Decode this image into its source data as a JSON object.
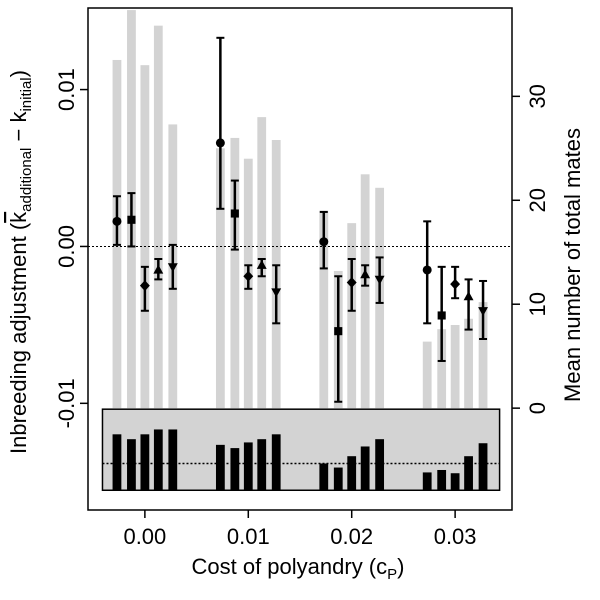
{
  "chart_data": {
    "type": "bar",
    "xlabel": "Cost of polyandry (c",
    "xlabel_sub": "P",
    "xlabel_close": ")",
    "ylabel_left_prefix": "Inbreeding adjustment (",
    "ylabel_left_k1": "k",
    "ylabel_left_sub1": "additional",
    "ylabel_left_minus": " − k",
    "ylabel_left_sub2": "initial",
    "ylabel_left_close": ")",
    "ylabel_right": "Mean number of total mates",
    "x_ticks": [
      {
        "value": 0.0,
        "label": "0.00"
      },
      {
        "value": 0.01,
        "label": "0.01"
      },
      {
        "value": 0.02,
        "label": "0.02"
      },
      {
        "value": 0.03,
        "label": "0.03"
      }
    ],
    "y_left_ticks": [
      {
        "value": -0.01,
        "label": "-0.01"
      },
      {
        "value": 0.0,
        "label": "0.00"
      },
      {
        "value": 0.01,
        "label": "0.01"
      }
    ],
    "y_right_ticks": [
      {
        "value": 0,
        "label": "0"
      },
      {
        "value": 10,
        "label": "10"
      },
      {
        "value": 20,
        "label": "20"
      },
      {
        "value": 30,
        "label": "30"
      }
    ],
    "x_range": [
      -0.0055,
      0.0355
    ],
    "y_left_range": [
      -0.0168,
      0.0152
    ],
    "y_right_range": [
      -9.8,
      38.5
    ],
    "reference_line_y": 0.0,
    "x_offsets": [
      -0.0027,
      -0.0013,
      0.0,
      0.0013,
      0.0027
    ],
    "groups": [
      {
        "x": 0.0,
        "mates": [
          33.5,
          38.3,
          33.0,
          36.8,
          27.3
        ],
        "effects": [
          {
            "marker": "circle",
            "mean": 0.0016,
            "lo": 0.0001,
            "hi": 0.0032
          },
          {
            "marker": "square",
            "mean": 0.0017,
            "lo": 0.0,
            "hi": 0.0034
          },
          {
            "marker": "diamond",
            "mean": -0.0025,
            "lo": -0.0041,
            "hi": -0.0013
          },
          {
            "marker": "triangle-up",
            "mean": -0.0015,
            "lo": -0.0021,
            "hi": -0.0008
          },
          {
            "marker": "triangle-down",
            "mean": -0.0013,
            "lo": -0.0027,
            "hi": 0.0001
          }
        ],
        "inset": [
          0.69,
          0.63,
          0.69,
          0.75,
          0.75
        ]
      },
      {
        "x": 0.01,
        "mates": [
          25.0,
          26.0,
          24.0,
          28.0,
          25.8
        ],
        "effects": [
          {
            "marker": "circle",
            "mean": 0.0066,
            "lo": 0.0024,
            "hi": 0.0133
          },
          {
            "marker": "square",
            "mean": 0.0021,
            "lo": -0.0002,
            "hi": 0.0042
          },
          {
            "marker": "diamond",
            "mean": -0.0019,
            "lo": -0.0027,
            "hi": -0.0012
          },
          {
            "marker": "triangle-up",
            "mean": -0.0012,
            "lo": -0.0019,
            "hi": -0.0008
          },
          {
            "marker": "triangle-down",
            "mean": -0.0029,
            "lo": -0.0049,
            "hi": -0.0012
          }
        ],
        "inset": [
          0.56,
          0.52,
          0.59,
          0.63,
          0.69
        ]
      },
      {
        "x": 0.02,
        "mates": [
          19.0,
          13.2,
          17.8,
          22.5,
          21.2
        ],
        "effects": [
          {
            "marker": "circle",
            "mean": 0.0003,
            "lo": -0.0014,
            "hi": 0.0022
          },
          {
            "marker": "square",
            "mean": -0.0054,
            "lo": -0.0099,
            "hi": -0.0019
          },
          {
            "marker": "diamond",
            "mean": -0.0023,
            "lo": -0.0041,
            "hi": -0.0008
          },
          {
            "marker": "triangle-up",
            "mean": -0.0018,
            "lo": -0.0025,
            "hi": -0.0012
          },
          {
            "marker": "triangle-down",
            "mean": -0.0021,
            "lo": -0.0036,
            "hi": -0.0007
          }
        ],
        "inset": [
          0.33,
          0.28,
          0.42,
          0.54,
          0.63
        ]
      },
      {
        "x": 0.03,
        "mates": [
          6.4,
          7.6,
          8.0,
          8.6,
          10.2
        ],
        "effects": [
          {
            "marker": "circle",
            "mean": -0.0015,
            "lo": -0.0049,
            "hi": 0.0016
          },
          {
            "marker": "square",
            "mean": -0.0044,
            "lo": -0.0073,
            "hi": -0.0013
          },
          {
            "marker": "diamond",
            "mean": -0.0024,
            "lo": -0.0033,
            "hi": -0.0013
          },
          {
            "marker": "triangle-up",
            "mean": -0.0032,
            "lo": -0.0053,
            "hi": -0.0021
          },
          {
            "marker": "triangle-down",
            "mean": -0.0041,
            "lo": -0.0059,
            "hi": -0.0022
          }
        ],
        "inset": [
          0.22,
          0.25,
          0.21,
          0.42,
          0.58
        ]
      }
    ],
    "inset_panel": {
      "bg": "#d3d3d3",
      "ref_level": 0.33
    },
    "colors": {
      "mates_bar": "#d3d3d3",
      "inset_bar": "#000000",
      "points": "#000000"
    },
    "grid": false
  }
}
